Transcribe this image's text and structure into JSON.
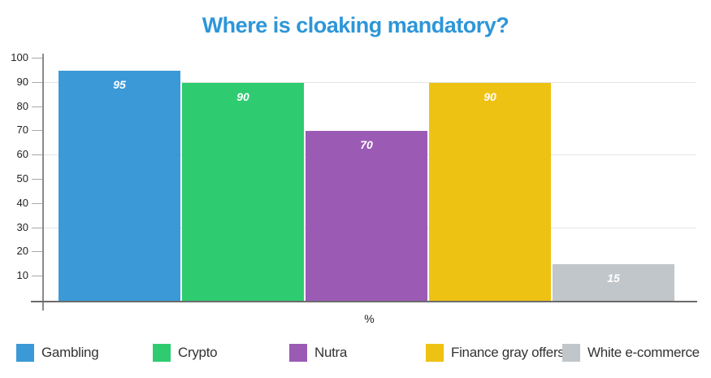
{
  "title": "Where is cloaking mandatory?",
  "chart_data": {
    "type": "bar",
    "title": "Where is cloaking mandatory?",
    "categories": [
      "Gambling",
      "Crypto",
      "Nutra",
      "Finance gray offers",
      "White e-commerce"
    ],
    "values": [
      95,
      90,
      70,
      90,
      15
    ],
    "bar_colors": [
      "#3b99d8",
      "#2fcb70",
      "#9b5bb5",
      "#eec213",
      "#c1c6ca"
    ],
    "value_labels": [
      "95",
      "90",
      "70",
      "90",
      "15"
    ],
    "xlabel": "%",
    "ylabel": "",
    "ylim": [
      0,
      100
    ],
    "ytick_interval": 10,
    "ytick_labels": [
      "10",
      "20",
      "30",
      "40",
      "50",
      "60",
      "70",
      "80",
      "90",
      "100"
    ],
    "gridlines_at": [
      30,
      60,
      90
    ],
    "grid": "horizontal-partial",
    "legend_position": "bottom",
    "value_labels_visible": true
  },
  "legend": {
    "items": [
      {
        "label": "Gambling",
        "color": "#3b99d8"
      },
      {
        "label": "Crypto",
        "color": "#2fcb70"
      },
      {
        "label": "Nutra",
        "color": "#9b5bb5"
      },
      {
        "label": "Finance gray offers",
        "color": "#eec213"
      },
      {
        "label": "White e-commerce",
        "color": "#c1c6ca"
      }
    ]
  },
  "colors": {
    "title_text": "#2d96d8",
    "axis_line": "#8a8a8a",
    "baseline": "#6b6b6b",
    "gridline": "#e3e3e3",
    "tick_label": "#222222",
    "value_label": "#ffffff",
    "legend_text": "#333333",
    "background": "#ffffff"
  }
}
